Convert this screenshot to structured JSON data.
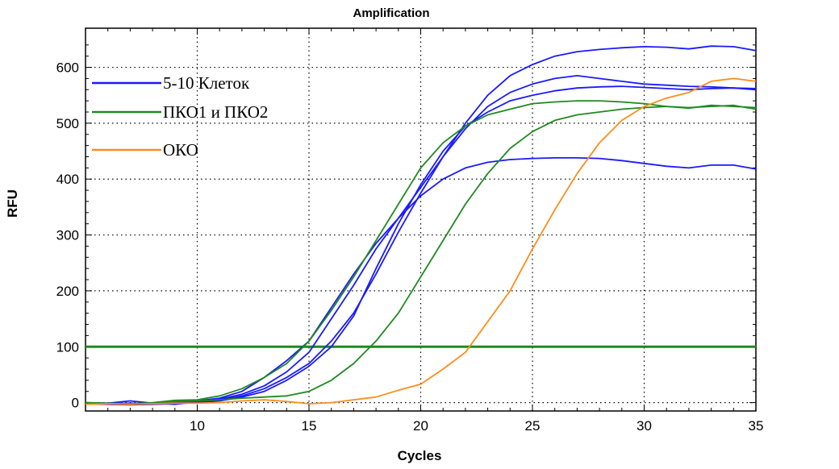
{
  "chart_data": {
    "type": "line",
    "title": "Amplification",
    "xlabel": "Cycles",
    "ylabel": "RFU",
    "xlim": [
      5,
      35
    ],
    "ylim": [
      -15,
      670
    ],
    "x_ticks": [
      10,
      15,
      20,
      25,
      30,
      35
    ],
    "y_ticks": [
      0,
      100,
      200,
      300,
      400,
      500,
      600
    ],
    "grid": "dotted",
    "legend_position": "top-left",
    "legend": [
      {
        "label": "5-10 Клеток",
        "color": "#1a1aff"
      },
      {
        "label": "ПКО1 и ПКО2",
        "color": "#1f8a1f"
      },
      {
        "label": "ОКО",
        "color": "#ff8c1a"
      }
    ],
    "threshold": {
      "y": 100,
      "color": "#1f8a1f"
    },
    "series": [
      {
        "group": "5-10 Клеток",
        "color": "#1a1aff",
        "x": [
          5,
          6,
          7,
          8,
          9,
          10,
          11,
          12,
          13,
          14,
          15,
          16,
          17,
          18,
          19,
          20,
          21,
          22,
          23,
          24,
          25,
          26,
          27,
          28,
          29,
          30,
          31,
          32,
          33,
          34,
          35
        ],
        "y": [
          -2,
          -3,
          -4,
          -3,
          -1,
          2,
          6,
          15,
          30,
          55,
          90,
          150,
          210,
          275,
          330,
          385,
          440,
          490,
          530,
          555,
          570,
          580,
          585,
          580,
          575,
          570,
          568,
          566,
          565,
          563,
          560
        ]
      },
      {
        "group": "5-10 Клеток",
        "color": "#1a1aff",
        "x": [
          5,
          6,
          7,
          8,
          9,
          10,
          11,
          12,
          13,
          14,
          15,
          16,
          17,
          18,
          19,
          20,
          21,
          22,
          23,
          24,
          25,
          26,
          27,
          28,
          29,
          30,
          31,
          32,
          33,
          34,
          35
        ],
        "y": [
          -1,
          -2,
          -3,
          -2,
          0,
          3,
          8,
          20,
          45,
          75,
          110,
          170,
          230,
          285,
          330,
          370,
          400,
          420,
          430,
          435,
          437,
          438,
          438,
          437,
          433,
          428,
          423,
          420,
          425,
          425,
          418
        ]
      },
      {
        "group": "5-10 Клеток",
        "color": "#1a1aff",
        "x": [
          5,
          6,
          7,
          8,
          9,
          10,
          11,
          12,
          13,
          14,
          15,
          16,
          17,
          18,
          19,
          20,
          21,
          22,
          23,
          24,
          25,
          26,
          27,
          28,
          29,
          30,
          31,
          32,
          33,
          34,
          35
        ],
        "y": [
          0,
          -1,
          3,
          -1,
          -3,
          1,
          4,
          12,
          25,
          45,
          70,
          110,
          160,
          230,
          305,
          375,
          440,
          500,
          550,
          585,
          605,
          620,
          628,
          632,
          635,
          637,
          636,
          633,
          638,
          637,
          630
        ]
      },
      {
        "group": "5-10 Клеток",
        "color": "#1a1aff",
        "x": [
          5,
          6,
          7,
          8,
          9,
          10,
          11,
          12,
          13,
          14,
          15,
          16,
          17,
          18,
          19,
          20,
          21,
          22,
          23,
          24,
          25,
          26,
          27,
          28,
          29,
          30,
          31,
          32,
          33,
          34,
          35
        ],
        "y": [
          -1,
          -2,
          -1,
          -3,
          -2,
          0,
          3,
          10,
          20,
          40,
          65,
          100,
          155,
          240,
          320,
          390,
          450,
          495,
          520,
          540,
          550,
          558,
          563,
          565,
          566,
          564,
          562,
          560,
          562,
          563,
          562
        ]
      },
      {
        "group": "ПКО1 и ПКО2",
        "color": "#1f8a1f",
        "x": [
          5,
          6,
          7,
          8,
          9,
          10,
          11,
          12,
          13,
          14,
          15,
          16,
          17,
          18,
          19,
          20,
          21,
          22,
          23,
          24,
          25,
          26,
          27,
          28,
          29,
          30,
          31,
          32,
          33,
          34,
          35
        ],
        "y": [
          0,
          -1,
          -2,
          0,
          4,
          5,
          12,
          25,
          45,
          70,
          110,
          165,
          225,
          290,
          355,
          420,
          465,
          495,
          515,
          525,
          535,
          538,
          540,
          540,
          538,
          535,
          530,
          528,
          530,
          532,
          525
        ]
      },
      {
        "group": "ПКО1 и ПКО2",
        "color": "#1f8a1f",
        "x": [
          5,
          6,
          7,
          8,
          9,
          10,
          11,
          12,
          13,
          14,
          15,
          16,
          17,
          18,
          19,
          20,
          21,
          22,
          23,
          24,
          25,
          26,
          27,
          28,
          29,
          30,
          31,
          32,
          33,
          34,
          35
        ],
        "y": [
          -2,
          -2,
          -3,
          -1,
          2,
          3,
          5,
          8,
          10,
          12,
          20,
          40,
          70,
          110,
          160,
          225,
          290,
          355,
          410,
          455,
          485,
          505,
          515,
          520,
          525,
          528,
          530,
          527,
          532,
          530,
          528
        ]
      },
      {
        "group": "ОКО",
        "color": "#ff8c1a",
        "x": [
          5,
          6,
          7,
          8,
          9,
          10,
          11,
          12,
          13,
          14,
          15,
          16,
          17,
          18,
          19,
          20,
          21,
          22,
          23,
          24,
          25,
          26,
          27,
          28,
          29,
          30,
          31,
          32,
          33,
          34,
          35
        ],
        "y": [
          -3,
          -2,
          -3,
          -2,
          -1,
          -1,
          0,
          3,
          5,
          2,
          -2,
          0,
          5,
          10,
          22,
          33,
          60,
          90,
          145,
          200,
          275,
          345,
          410,
          465,
          505,
          530,
          545,
          555,
          575,
          580,
          575
        ]
      }
    ]
  }
}
